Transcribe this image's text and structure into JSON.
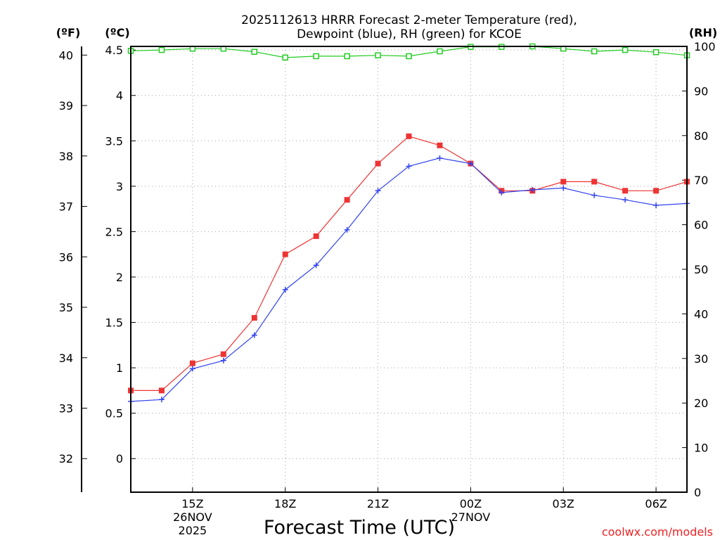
{
  "chart_data": {
    "type": "line",
    "title_line1": "2025112613 HRRR Forecast 2-meter Temperature (red),",
    "title_line2": "Dewpoint (blue), RH (green) for KCOE",
    "xlabel": "Forecast Time (UTC)",
    "y_left_outer_label": "(ºF)",
    "y_left_inner_label": "(ºC)",
    "y_right_label": "(RH)",
    "watermark": "coolwx.com/models",
    "ylim_c": [
      -0.37,
      4.54
    ],
    "ylim_rh": [
      0,
      100
    ],
    "fahrenheit_ticks": [
      "32",
      "33",
      "34",
      "35",
      "36",
      "37",
      "38",
      "39",
      "40"
    ],
    "celsius_ticks": [
      "0",
      "0.5",
      "1",
      "1.5",
      "2",
      "2.5",
      "3",
      "3.5",
      "4",
      "4.5"
    ],
    "rh_ticks": [
      "0",
      "10",
      "20",
      "30",
      "40",
      "50",
      "60",
      "70",
      "80",
      "90",
      "100"
    ],
    "x_hours": [
      13,
      14,
      15,
      16,
      17,
      18,
      19,
      20,
      21,
      22,
      23,
      24,
      25,
      26,
      27,
      28,
      29,
      30,
      31
    ],
    "x_tick_labels": [
      {
        "hour": 15,
        "label": "15Z",
        "date": "26NOV",
        "year": "2025"
      },
      {
        "hour": 18,
        "label": "18Z"
      },
      {
        "hour": 21,
        "label": "21Z"
      },
      {
        "hour": 24,
        "label": "00Z",
        "date": "27NOV"
      },
      {
        "hour": 27,
        "label": "03Z"
      },
      {
        "hour": 30,
        "label": "06Z"
      }
    ],
    "series": [
      {
        "name": "Temperature",
        "units": "C",
        "color": "#ee3333",
        "values": [
          0.75,
          0.75,
          1.05,
          1.15,
          1.55,
          2.25,
          2.45,
          2.85,
          3.25,
          3.55,
          3.45,
          3.25,
          2.95,
          2.95,
          3.05,
          3.05,
          2.95,
          2.95,
          3.05
        ]
      },
      {
        "name": "Dewpoint",
        "units": "C",
        "color": "#3344ee",
        "values": [
          0.63,
          0.65,
          0.99,
          1.08,
          1.36,
          1.86,
          2.13,
          2.52,
          2.95,
          3.22,
          3.31,
          3.25,
          2.93,
          2.96,
          2.98,
          2.9,
          2.85,
          2.79,
          2.81
        ]
      },
      {
        "name": "RH",
        "units": "%",
        "color": "#22cc22",
        "values": [
          99.0,
          99.2,
          99.5,
          99.5,
          98.8,
          97.5,
          97.8,
          97.8,
          98.0,
          97.8,
          98.9,
          99.9,
          99.9,
          100.0,
          99.5,
          98.9,
          99.2,
          98.7,
          98.0
        ]
      }
    ]
  }
}
